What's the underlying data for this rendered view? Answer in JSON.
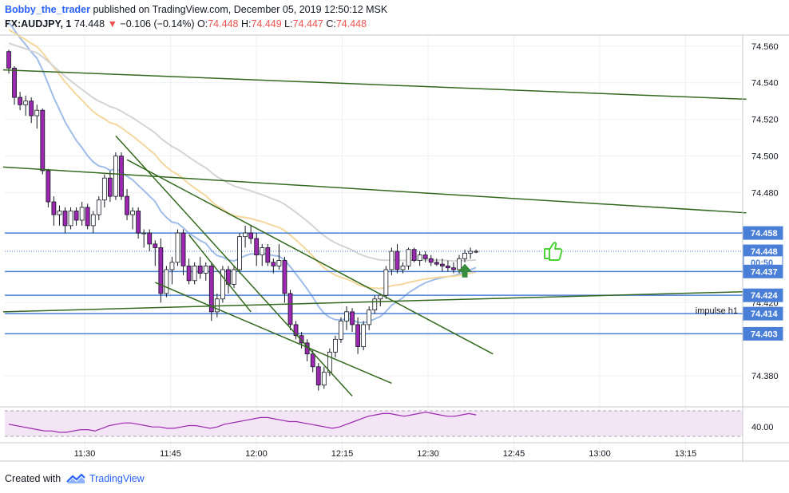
{
  "header": {
    "author": "Bobby_the_trader",
    "published_text": "published on TradingView.com, December 05, 2019 12:50:12 MSK",
    "symbol": "FX:AUDJPY, 1",
    "last": "74.448",
    "change_arrow": "▼",
    "change": "−0.106 (−0.14%)",
    "o_label": "O:",
    "o": "74.448",
    "h_label": "H:",
    "h": "74.449",
    "l_label": "L:",
    "l": "74.447",
    "c_label": "C:",
    "c": "74.448"
  },
  "footer": {
    "created_with": "Created with",
    "brand": "TradingView"
  },
  "colors": {
    "up": "#ffffff",
    "down": "#9c27b0",
    "wick": "#131722",
    "trendline": "#33691e",
    "level": "#4a7fd8",
    "ma_blue": "#9fbde8",
    "ma_orange": "#f5d79e",
    "ma_gray": "#d4d4d4",
    "rsi": "#9c27b0",
    "rsi_bg": "#f3e5f5",
    "thumb": "#4cd137",
    "arrow": "#388e3c"
  },
  "chart_data": {
    "type": "candlestick",
    "x_axis": {
      "ticks": [
        "11:30",
        "11:45",
        "12:00",
        "12:15",
        "12:30",
        "12:45",
        "13:00",
        "13:15"
      ]
    },
    "y_axis": {
      "range": [
        74.364,
        74.566
      ],
      "ticks": [
        "74.560",
        "74.540",
        "74.520",
        "74.500",
        "74.480",
        "74.420",
        "74.380"
      ]
    },
    "price_labels": [
      {
        "value": 74.458,
        "text": "74.458",
        "kind": "level"
      },
      {
        "value": 74.448,
        "text": "74.448",
        "kind": "last"
      },
      {
        "value": 74.442,
        "text": "00:50",
        "kind": "countdown"
      },
      {
        "value": 74.437,
        "text": "74.437",
        "kind": "level"
      },
      {
        "value": 74.424,
        "text": "74.424",
        "kind": "level"
      },
      {
        "value": 74.414,
        "text": "74.414",
        "kind": "level"
      },
      {
        "value": 74.403,
        "text": "74.403",
        "kind": "level"
      }
    ],
    "horizontal_levels": [
      74.458,
      74.437,
      74.424,
      74.414,
      74.403
    ],
    "annotations": [
      {
        "text": "impulse h1",
        "value": 74.417
      }
    ],
    "candles_ohlc": [
      [
        74.557,
        74.558,
        74.545,
        74.548
      ],
      [
        74.548,
        74.549,
        74.528,
        74.532
      ],
      [
        74.532,
        74.535,
        74.525,
        74.528
      ],
      [
        74.528,
        74.533,
        74.522,
        74.53
      ],
      [
        74.53,
        74.532,
        74.518,
        74.522
      ],
      [
        74.522,
        74.528,
        74.515,
        74.525
      ],
      [
        74.525,
        74.526,
        74.49,
        74.492
      ],
      [
        74.492,
        74.493,
        74.472,
        74.475
      ],
      [
        74.475,
        74.478,
        74.462,
        74.468
      ],
      [
        74.468,
        74.473,
        74.462,
        74.47
      ],
      [
        74.47,
        74.472,
        74.458,
        74.462
      ],
      [
        74.462,
        74.472,
        74.46,
        74.47
      ],
      [
        74.47,
        74.472,
        74.462,
        74.465
      ],
      [
        74.465,
        74.475,
        74.462,
        74.472
      ],
      [
        74.472,
        74.474,
        74.46,
        74.462
      ],
      [
        74.462,
        74.47,
        74.458,
        74.468
      ],
      [
        74.468,
        74.478,
        74.465,
        74.476
      ],
      [
        74.476,
        74.49,
        74.472,
        74.488
      ],
      [
        74.488,
        74.492,
        74.475,
        74.478
      ],
      [
        74.478,
        74.502,
        74.476,
        74.5
      ],
      [
        74.5,
        74.502,
        74.476,
        74.478
      ],
      [
        74.478,
        74.482,
        74.465,
        74.468
      ],
      [
        74.468,
        74.472,
        74.46,
        74.47
      ],
      [
        74.47,
        74.472,
        74.455,
        74.458
      ],
      [
        74.458,
        74.46,
        74.45,
        74.458
      ],
      [
        74.458,
        74.46,
        74.448,
        74.452
      ],
      [
        74.452,
        74.454,
        74.44,
        74.45
      ],
      [
        74.45,
        74.455,
        74.42,
        74.425
      ],
      [
        74.425,
        74.44,
        74.423,
        74.438
      ],
      [
        74.438,
        74.445,
        74.43,
        74.442
      ],
      [
        74.442,
        74.46,
        74.44,
        74.458
      ],
      [
        74.458,
        74.46,
        74.435,
        74.44
      ],
      [
        74.44,
        74.444,
        74.43,
        74.432
      ],
      [
        74.432,
        74.442,
        74.43,
        74.44
      ],
      [
        74.44,
        74.445,
        74.433,
        74.436
      ],
      [
        74.436,
        74.442,
        74.432,
        74.44
      ],
      [
        74.44,
        74.442,
        74.41,
        74.415
      ],
      [
        74.415,
        74.425,
        74.412,
        74.422
      ],
      [
        74.422,
        74.44,
        74.42,
        74.438
      ],
      [
        74.438,
        74.44,
        74.425,
        74.43
      ],
      [
        74.43,
        74.44,
        74.428,
        74.438
      ],
      [
        74.438,
        74.458,
        74.436,
        74.456
      ],
      [
        74.456,
        74.462,
        74.45,
        74.458
      ],
      [
        74.458,
        74.462,
        74.452,
        74.455
      ],
      [
        74.455,
        74.458,
        74.44,
        74.446
      ],
      [
        74.446,
        74.452,
        74.44,
        74.45
      ],
      [
        74.45,
        74.452,
        74.44,
        74.442
      ],
      [
        74.442,
        74.444,
        74.436,
        74.44
      ],
      [
        74.44,
        74.452,
        74.438,
        74.443
      ],
      [
        74.443,
        74.445,
        74.42,
        74.425
      ],
      [
        74.425,
        74.427,
        74.405,
        74.408
      ],
      [
        74.408,
        74.41,
        74.4,
        74.402
      ],
      [
        74.402,
        74.404,
        74.395,
        74.398
      ],
      [
        74.398,
        74.4,
        74.388,
        74.392
      ],
      [
        74.392,
        74.394,
        74.382,
        74.385
      ],
      [
        74.385,
        74.387,
        74.372,
        74.375
      ],
      [
        74.375,
        74.385,
        74.373,
        74.382
      ],
      [
        74.382,
        74.395,
        74.38,
        74.393
      ],
      [
        74.393,
        74.402,
        74.39,
        74.4
      ],
      [
        74.4,
        74.412,
        74.398,
        74.41
      ],
      [
        74.41,
        74.418,
        74.405,
        74.415
      ],
      [
        74.415,
        74.417,
        74.404,
        74.408
      ],
      [
        74.408,
        74.412,
        74.392,
        74.396
      ],
      [
        74.396,
        74.41,
        74.394,
        74.408
      ],
      [
        74.408,
        74.418,
        74.405,
        74.416
      ],
      [
        74.416,
        74.424,
        74.414,
        74.422
      ],
      [
        74.422,
        74.425,
        74.418,
        74.424
      ],
      [
        74.424,
        74.44,
        74.422,
        74.438
      ],
      [
        74.438,
        74.45,
        74.435,
        74.448
      ],
      [
        74.448,
        74.452,
        74.436,
        74.438
      ],
      [
        74.438,
        74.442,
        74.436,
        74.44
      ],
      [
        74.44,
        74.45,
        74.438,
        74.449
      ],
      [
        74.449,
        74.45,
        74.442,
        74.443
      ],
      [
        74.443,
        74.448,
        74.44,
        74.446
      ],
      [
        74.446,
        74.448,
        74.442,
        74.444
      ],
      [
        74.444,
        74.446,
        74.44,
        74.442
      ],
      [
        74.442,
        74.444,
        74.44,
        74.441
      ],
      [
        74.441,
        74.444,
        74.437,
        74.44
      ],
      [
        74.44,
        74.443,
        74.437,
        74.439
      ],
      [
        74.439,
        74.442,
        74.436,
        74.438
      ],
      [
        74.438,
        74.446,
        74.436,
        74.444
      ],
      [
        74.444,
        74.449,
        74.442,
        74.447
      ],
      [
        74.447,
        74.45,
        74.444,
        74.448
      ],
      [
        74.448,
        74.449,
        74.447,
        74.448
      ]
    ],
    "rsi": {
      "tick": "40.00",
      "values": [
        42,
        41,
        40,
        39,
        38,
        37,
        37,
        36,
        36,
        37,
        38,
        38,
        37,
        39,
        41,
        42,
        43,
        43,
        42,
        41,
        40,
        40,
        39,
        39,
        40,
        41,
        41,
        40,
        39,
        40,
        42,
        43,
        44,
        45,
        46,
        47,
        47,
        46,
        45,
        44,
        44,
        43,
        42,
        41,
        40,
        39,
        40,
        42,
        44,
        46,
        48,
        49,
        50,
        50,
        49,
        48,
        49,
        50,
        51,
        50,
        49,
        48,
        48,
        49,
        50,
        49
      ]
    }
  }
}
